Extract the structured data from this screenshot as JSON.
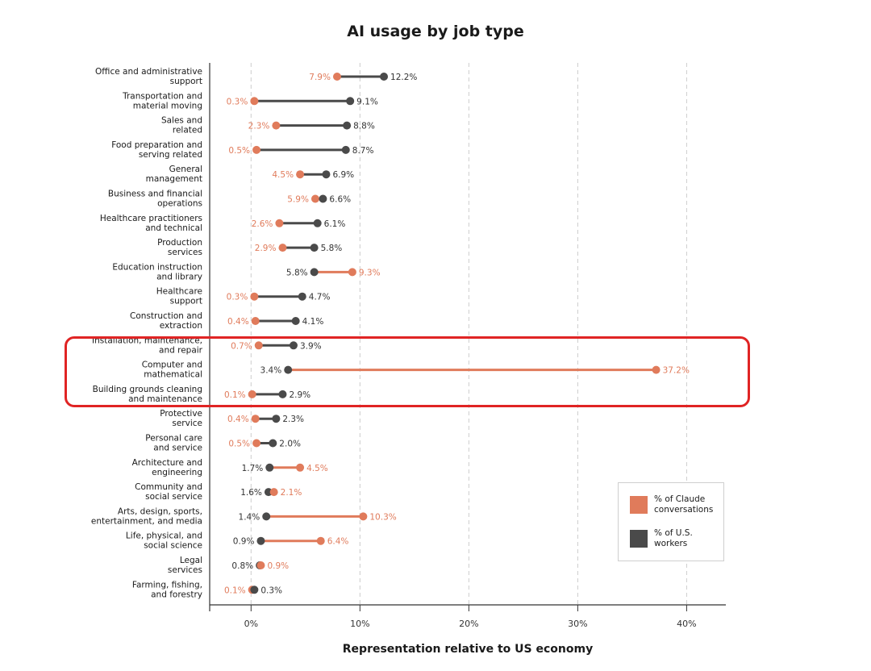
{
  "colors": {
    "claude": "#e07b5b",
    "workers": "#4a4a4a",
    "highlight": "#e02424",
    "grid": "#cccccc"
  },
  "legend": {
    "claude_label": "% of Claude conversations",
    "workers_label": "% of U.S. workers"
  },
  "chart_data": {
    "type": "dumbbell",
    "title": "AI usage by job type",
    "xlabel": "Representation relative to US economy",
    "ylabel": "",
    "xlim": [
      -3.8,
      43.6
    ],
    "xticks": [
      0,
      10,
      20,
      30,
      40
    ],
    "xtick_labels": [
      "0%",
      "10%",
      "20%",
      "30%",
      "40%"
    ],
    "grid": "vertical dashed",
    "legend_position": "bottom-right",
    "highlighted_categories": [
      "Installation, maintenance, and repair",
      "Computer and mathematical",
      "Building grounds cleaning and maintenance"
    ],
    "series": [
      {
        "name": "% of Claude conversations",
        "key": "claude"
      },
      {
        "name": "% of U.S. workers",
        "key": "workers"
      }
    ],
    "rows": [
      {
        "category": [
          "Office and administrative",
          "support"
        ],
        "claude": 7.9,
        "workers": 12.2,
        "claude_label": "7.9%",
        "workers_label": "12.2%"
      },
      {
        "category": [
          "Transportation and",
          "material moving"
        ],
        "claude": 0.3,
        "workers": 9.1,
        "claude_label": "0.3%",
        "workers_label": "9.1%"
      },
      {
        "category": [
          "Sales and",
          "related"
        ],
        "claude": 2.3,
        "workers": 8.8,
        "claude_label": "2.3%",
        "workers_label": "8.8%"
      },
      {
        "category": [
          "Food preparation and",
          "serving related"
        ],
        "claude": 0.5,
        "workers": 8.7,
        "claude_label": "0.5%",
        "workers_label": "8.7%"
      },
      {
        "category": [
          "General",
          "management"
        ],
        "claude": 4.5,
        "workers": 6.9,
        "claude_label": "4.5%",
        "workers_label": "6.9%"
      },
      {
        "category": [
          "Business and financial",
          "operations"
        ],
        "claude": 5.9,
        "workers": 6.6,
        "claude_label": "5.9%",
        "workers_label": "6.6%"
      },
      {
        "category": [
          "Healthcare practitioners",
          "and technical"
        ],
        "claude": 2.6,
        "workers": 6.1,
        "claude_label": "2.6%",
        "workers_label": "6.1%"
      },
      {
        "category": [
          "Production",
          "services"
        ],
        "claude": 2.9,
        "workers": 5.8,
        "claude_label": "2.9%",
        "workers_label": "5.8%"
      },
      {
        "category": [
          "Education instruction",
          "and library"
        ],
        "claude": 9.3,
        "workers": 5.8,
        "claude_label": "9.3%",
        "workers_label": "5.8%"
      },
      {
        "category": [
          "Healthcare",
          "support"
        ],
        "claude": 0.3,
        "workers": 4.7,
        "claude_label": "0.3%",
        "workers_label": "4.7%"
      },
      {
        "category": [
          "Construction and",
          "extraction"
        ],
        "claude": 0.4,
        "workers": 4.1,
        "claude_label": "0.4%",
        "workers_label": "4.1%"
      },
      {
        "category": [
          "Installation, maintenance,",
          "and repair"
        ],
        "claude": 0.7,
        "workers": 3.9,
        "claude_label": "0.7%",
        "workers_label": "3.9%"
      },
      {
        "category": [
          "Computer and",
          "mathematical"
        ],
        "claude": 37.2,
        "workers": 3.4,
        "claude_label": "37.2%",
        "workers_label": "3.4%"
      },
      {
        "category": [
          "Building grounds cleaning",
          "and maintenance"
        ],
        "claude": 0.1,
        "workers": 2.9,
        "claude_label": "0.1%",
        "workers_label": "2.9%"
      },
      {
        "category": [
          "Protective",
          "service"
        ],
        "claude": 0.4,
        "workers": 2.3,
        "claude_label": "0.4%",
        "workers_label": "2.3%"
      },
      {
        "category": [
          "Personal care",
          "and service"
        ],
        "claude": 0.5,
        "workers": 2.0,
        "claude_label": "0.5%",
        "workers_label": "2.0%"
      },
      {
        "category": [
          "Architecture and",
          "engineering"
        ],
        "claude": 4.5,
        "workers": 1.7,
        "claude_label": "4.5%",
        "workers_label": "1.7%"
      },
      {
        "category": [
          "Community and",
          "social service"
        ],
        "claude": 2.1,
        "workers": 1.6,
        "claude_label": "2.1%",
        "workers_label": "1.6%"
      },
      {
        "category": [
          "Arts, design, sports,",
          "entertainment, and media"
        ],
        "claude": 10.3,
        "workers": 1.4,
        "claude_label": "10.3%",
        "workers_label": "1.4%"
      },
      {
        "category": [
          "Life, physical, and",
          "social science"
        ],
        "claude": 6.4,
        "workers": 0.9,
        "claude_label": "6.4%",
        "workers_label": "0.9%"
      },
      {
        "category": [
          "Legal",
          "services"
        ],
        "claude": 0.9,
        "workers": 0.8,
        "claude_label": "0.9%",
        "workers_label": "0.8%"
      },
      {
        "category": [
          "Farming, fishing,",
          "and forestry"
        ],
        "claude": 0.1,
        "workers": 0.3,
        "claude_label": "0.1%",
        "workers_label": "0.3%"
      }
    ]
  }
}
